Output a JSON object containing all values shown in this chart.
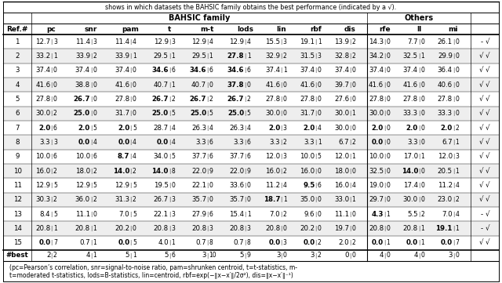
{
  "caption": "shows in which datasets the BAHSIC family obtains the best performance (indicated by a √).",
  "headers": [
    "Ref.#",
    "pc",
    "snr",
    "pam",
    "t",
    "m-t",
    "lods",
    "lin",
    "rbf",
    "dis",
    "rfe",
    "ll",
    "mi",
    ""
  ],
  "rows": [
    [
      "1",
      "12.7",
      "3",
      "11.4",
      "3",
      "11.4",
      "4",
      "12.9",
      "3",
      "12.9",
      "4",
      "12.9",
      "4",
      "15.5",
      "3",
      "19.1",
      "1",
      "13.9",
      "2",
      "14.3",
      "0",
      "7.7",
      "0",
      "26.1",
      "0",
      "-",
      "√"
    ],
    [
      "2",
      "33.2",
      "1",
      "33.9",
      "2",
      "33.9",
      "1",
      "29.5",
      "1",
      "29.5",
      "1",
      "27.8",
      "1",
      "32.9",
      "2",
      "31.5",
      "3",
      "32.8",
      "2",
      "34.2",
      "0",
      "32.5",
      "1",
      "29.9",
      "0",
      "√",
      "√"
    ],
    [
      "3",
      "37.4",
      "0",
      "37.4",
      "0",
      "37.4",
      "0",
      "34.6",
      "6",
      "34.6",
      "6",
      "34.6",
      "6",
      "37.4",
      "1",
      "37.4",
      "0",
      "37.4",
      "0",
      "37.4",
      "0",
      "37.4",
      "0",
      "36.4",
      "0",
      "√",
      "√"
    ],
    [
      "4",
      "41.6",
      "0",
      "38.8",
      "0",
      "41.6",
      "0",
      "40.7",
      "1",
      "40.7",
      "0",
      "37.8",
      "0",
      "41.6",
      "0",
      "41.6",
      "0",
      "39.7",
      "0",
      "41.6",
      "0",
      "41.6",
      "0",
      "40.6",
      "0",
      "√",
      "√"
    ],
    [
      "5",
      "27.8",
      "0",
      "26.7",
      "0",
      "27.8",
      "0",
      "26.7",
      "2",
      "26.7",
      "2",
      "26.7",
      "2",
      "27.8",
      "0",
      "27.8",
      "0",
      "27.6",
      "0",
      "27.8",
      "0",
      "27.8",
      "0",
      "27.8",
      "0",
      "√",
      "√"
    ],
    [
      "6",
      "30.0",
      "2",
      "25.0",
      "0",
      "31.7",
      "0",
      "25.0",
      "5",
      "25.0",
      "5",
      "25.0",
      "5",
      "30.0",
      "0",
      "31.7",
      "0",
      "30.0",
      "1",
      "30.0",
      "0",
      "33.3",
      "0",
      "33.3",
      "0",
      "√",
      "√"
    ],
    [
      "7",
      "2.0",
      "6",
      "2.0",
      "5",
      "2.0",
      "5",
      "28.7",
      "4",
      "26.3",
      "4",
      "26.3",
      "4",
      "2.0",
      "3",
      "2.0",
      "4",
      "30.0",
      "0",
      "2.0",
      "0",
      "2.0",
      "0",
      "2.0",
      "2",
      "√",
      "√"
    ],
    [
      "8",
      "3.3",
      "3",
      "0.0",
      "4",
      "0.0",
      "4",
      "0.0",
      "4",
      "3.3",
      "6",
      "3.3",
      "6",
      "3.3",
      "2",
      "3.3",
      "1",
      "6.7",
      "2",
      "0.0",
      "0",
      "3.3",
      "0",
      "6.7",
      "1",
      "√",
      "√"
    ],
    [
      "9",
      "10.0",
      "6",
      "10.0",
      "6",
      "8.7",
      "4",
      "34.0",
      "5",
      "37.7",
      "6",
      "37.7",
      "6",
      "12.0",
      "3",
      "10.0",
      "5",
      "12.0",
      "1",
      "10.0",
      "0",
      "17.0",
      "1",
      "12.0",
      "3",
      "√",
      "√"
    ],
    [
      "10",
      "16.0",
      "2",
      "18.0",
      "2",
      "14.0",
      "2",
      "14.0",
      "8",
      "22.0",
      "9",
      "22.0",
      "9",
      "16.0",
      "2",
      "16.0",
      "0",
      "18.0",
      "0",
      "32.5",
      "0",
      "14.0",
      "0",
      "20.5",
      "1",
      "√",
      "√"
    ],
    [
      "11",
      "12.9",
      "5",
      "12.9",
      "5",
      "12.9",
      "5",
      "19.5",
      "0",
      "22.1",
      "0",
      "33.6",
      "0",
      "11.2",
      "4",
      "9.5",
      "6",
      "16.0",
      "4",
      "19.0",
      "0",
      "17.4",
      "0",
      "11.2",
      "4",
      "√",
      "√"
    ],
    [
      "12",
      "30.3",
      "2",
      "36.0",
      "2",
      "31.3",
      "2",
      "26.7",
      "3",
      "35.7",
      "0",
      "35.7",
      "0",
      "18.7",
      "1",
      "35.0",
      "0",
      "33.0",
      "1",
      "29.7",
      "0",
      "30.0",
      "0",
      "23.0",
      "2",
      "√",
      "√"
    ],
    [
      "13",
      "8.4",
      "5",
      "11.1",
      "0",
      "7.0",
      "5",
      "22.1",
      "3",
      "27.9",
      "6",
      "15.4",
      "1",
      "7.0",
      "2",
      "9.6",
      "0",
      "11.1",
      "0",
      "4.3",
      "1",
      "5.5",
      "2",
      "7.0",
      "4",
      "-",
      "√"
    ],
    [
      "14",
      "20.8",
      "1",
      "20.8",
      "1",
      "20.2",
      "0",
      "20.8",
      "3",
      "20.8",
      "3",
      "20.8",
      "3",
      "20.8",
      "0",
      "20.2",
      "0",
      "19.7",
      "0",
      "20.8",
      "0",
      "20.8",
      "1",
      "19.1",
      "1",
      "-",
      "√"
    ],
    [
      "15",
      "0.0",
      "7",
      "0.7",
      "1",
      "0.0",
      "5",
      "4.0",
      "1",
      "0.7",
      "8",
      "0.7",
      "8",
      "0.0",
      "3",
      "0.0",
      "2",
      "2.0",
      "2",
      "0.0",
      "1",
      "0.0",
      "1",
      "0.0",
      "7",
      "√",
      "√"
    ]
  ],
  "best_row": [
    "#best",
    "2",
    "2",
    "4",
    "1",
    "5",
    "1",
    "5",
    "6",
    "3",
    "10",
    "5",
    "9",
    "3",
    "0",
    "3",
    "2",
    "0",
    "0",
    "4",
    "0",
    "4",
    "0",
    "3",
    "0",
    "",
    ""
  ],
  "bold_cells": {
    "1": [],
    "2": [
      6
    ],
    "3": [
      4,
      5,
      6
    ],
    "4": [
      6
    ],
    "5": [
      2,
      4,
      5,
      6
    ],
    "6": [
      2,
      4,
      5,
      6
    ],
    "7": [
      1,
      2,
      3,
      7,
      8,
      10,
      11,
      12
    ],
    "8": [
      2,
      3,
      4,
      10
    ],
    "9": [
      3
    ],
    "10": [
      3,
      4,
      11
    ],
    "11": [
      8
    ],
    "12": [
      7
    ],
    "13": [
      10
    ],
    "14": [
      12
    ],
    "15": [
      1,
      3,
      7,
      8,
      10,
      11,
      12
    ]
  },
  "footnote_line1": "(pc=Pearson’s correlation, snr=signal-to-noise ratio, pam=shrunken centroid, t=t-statistics, m-",
  "footnote_line2": "t=moderated t-statistics, lods=B-statistics, lin=centroid, rbf=exp(−∥x−x′∥/2σ²), dis=∥x−x′∥⁻¹)"
}
